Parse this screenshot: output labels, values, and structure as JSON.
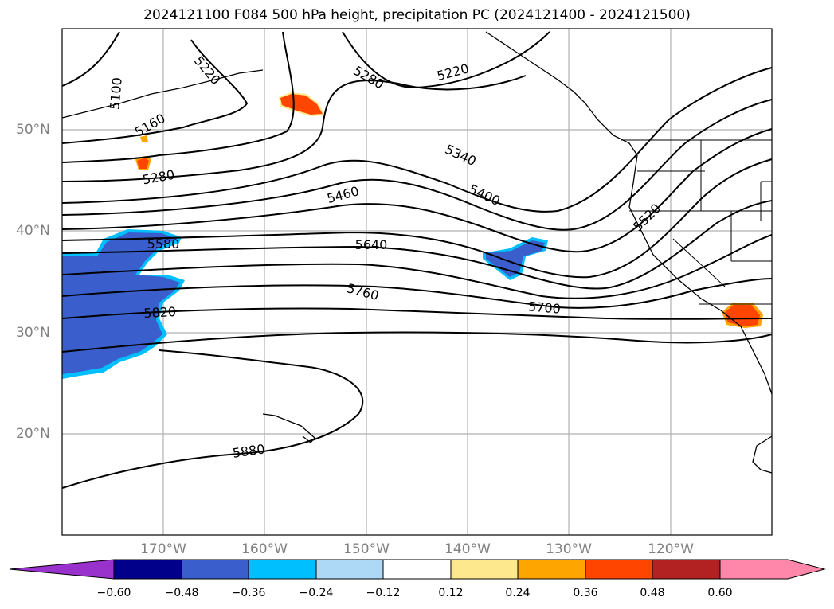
{
  "title": "2024121100 F084 500 hPa height, precipitation PC (2024121400 - 2024121500)",
  "lat_labels": [
    "50°N",
    "40°N",
    "30°N",
    "20°N"
  ],
  "lon_labels": [
    "170°W",
    "160°W",
    "150°W",
    "140°W",
    "130°W",
    "120°W"
  ],
  "contour_labels": [
    "5100",
    "5220",
    "5280",
    "5220",
    "5160",
    "5280",
    "5340",
    "5400",
    "5460",
    "5520",
    "5580",
    "5640",
    "5700",
    "5760",
    "5820",
    "5880"
  ],
  "colorbar": {
    "ticks": [
      "−0.60",
      "−0.48",
      "−0.36",
      "−0.24",
      "−0.12",
      "0.12",
      "0.24",
      "0.36",
      "0.48",
      "0.60"
    ],
    "colors": [
      "#9932cc",
      "#00008b",
      "#3a5fcd",
      "#00bfff",
      "#add8f6",
      "#ffffff",
      "#fde88e",
      "#ffa500",
      "#ff4500",
      "#b22222",
      "#ff88aa",
      "#ff88aa"
    ]
  }
}
